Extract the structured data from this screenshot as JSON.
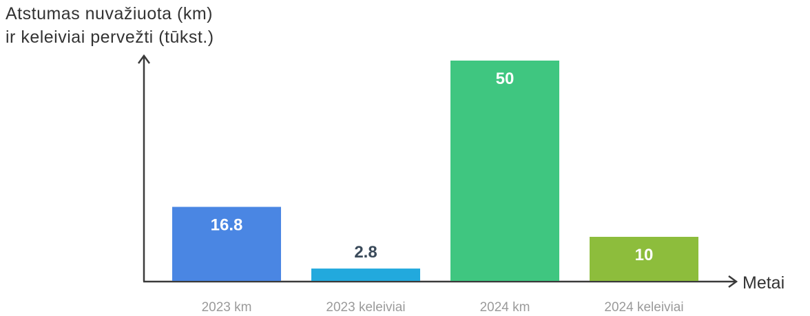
{
  "chart_data": {
    "type": "bar",
    "ylabel_lines": [
      "Atstumas nuvažiuota (km)",
      "ir keleiviai pervežti (tūkst.)"
    ],
    "xlabel": "Metai",
    "categories": [
      "2023 km",
      "2023 keleiviai",
      "2024 km",
      "2024 keleiviai"
    ],
    "values": [
      16.8,
      2.8,
      50,
      10
    ],
    "value_labels": [
      "16.8",
      "2.8",
      "50",
      "10"
    ],
    "colors": [
      "#4a86e3",
      "#22a9dd",
      "#3fc680",
      "#8dbd3c"
    ],
    "label_colors": [
      "#ffffff",
      "#3a4a5a",
      "#ffffff",
      "#ffffff"
    ],
    "label_position": [
      "inside",
      "above",
      "inside",
      "inside"
    ],
    "ylim": [
      0,
      50
    ],
    "grid": false
  }
}
